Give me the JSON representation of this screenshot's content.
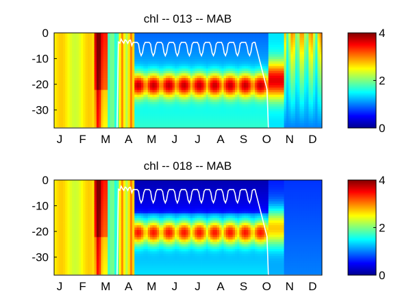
{
  "chart_data": [
    {
      "type": "heatmap",
      "title": "chl -- 013 -- MAB",
      "xlabel": "",
      "ylabel": "",
      "x_tick_labels": [
        "J",
        "F",
        "M",
        "A",
        "M",
        "J",
        "J",
        "A",
        "S",
        "O",
        "N",
        "D"
      ],
      "y_ticks": [
        0,
        -10,
        -20,
        -30
      ],
      "ylim": [
        -37,
        0
      ],
      "colorbar": {
        "ticks": [
          0,
          2,
          4
        ],
        "clim": [
          0,
          4
        ],
        "colormap": "jet"
      },
      "overlay_line": "white mixed-layer depth contour",
      "grid": false
    },
    {
      "type": "heatmap",
      "title": "chl -- 018 -- MAB",
      "xlabel": "",
      "ylabel": "",
      "x_tick_labels": [
        "J",
        "F",
        "M",
        "A",
        "M",
        "J",
        "J",
        "A",
        "S",
        "O",
        "N",
        "D"
      ],
      "y_ticks": [
        0,
        -10,
        -20,
        -30
      ],
      "ylim": [
        -37,
        0
      ],
      "colorbar": {
        "ticks": [
          0,
          2,
          4
        ],
        "clim": [
          0,
          4
        ],
        "colormap": "jet"
      },
      "overlay_line": "white mixed-layer depth contour",
      "grid": false
    }
  ]
}
